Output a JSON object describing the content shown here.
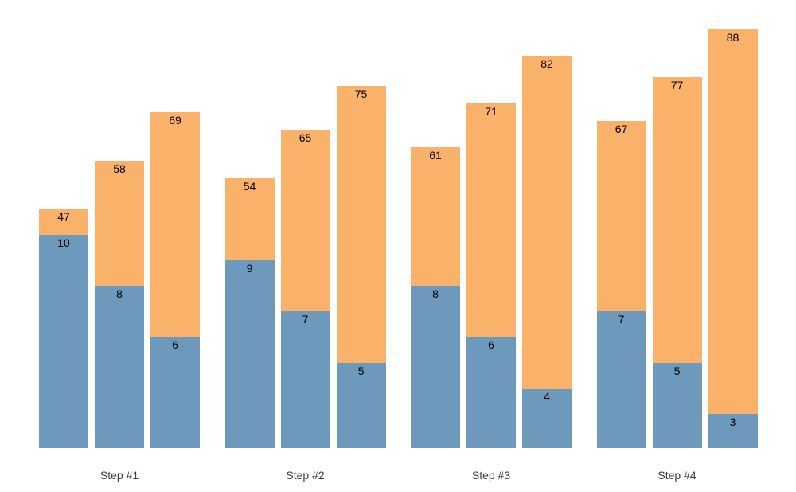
{
  "chart_data": {
    "type": "bar",
    "variant": "grouped-stacked-bars",
    "title": "",
    "xlabel": "",
    "ylabel": "",
    "categories": [
      "Step #1",
      "Step #2",
      "Step #3",
      "Step #4"
    ],
    "groups": [
      {
        "label": "Step #1",
        "bars": [
          {
            "bottom_value": 10,
            "top_value": 47
          },
          {
            "bottom_value": 8,
            "top_value": 58
          },
          {
            "bottom_value": 6,
            "top_value": 69
          }
        ]
      },
      {
        "label": "Step #2",
        "bars": [
          {
            "bottom_value": 9,
            "top_value": 54
          },
          {
            "bottom_value": 7,
            "top_value": 65
          },
          {
            "bottom_value": 5,
            "top_value": 75
          }
        ]
      },
      {
        "label": "Step #3",
        "bars": [
          {
            "bottom_value": 8,
            "top_value": 61
          },
          {
            "bottom_value": 6,
            "top_value": 71
          },
          {
            "bottom_value": 4,
            "top_value": 82
          }
        ]
      },
      {
        "label": "Step #4",
        "bars": [
          {
            "bottom_value": 7,
            "top_value": 67
          },
          {
            "bottom_value": 5,
            "top_value": 77
          },
          {
            "bottom_value": 3,
            "top_value": 88
          }
        ]
      }
    ],
    "colors": {
      "bottom_segment": "#6D99BC",
      "top_segment": "#FAB26A",
      "value_label": "#000000",
      "category_label": "#3C3C3C",
      "background": "#FFFFFF"
    },
    "legend": "none",
    "grid": false,
    "axes_visible": false,
    "value_label_position": "inside-top-center"
  }
}
